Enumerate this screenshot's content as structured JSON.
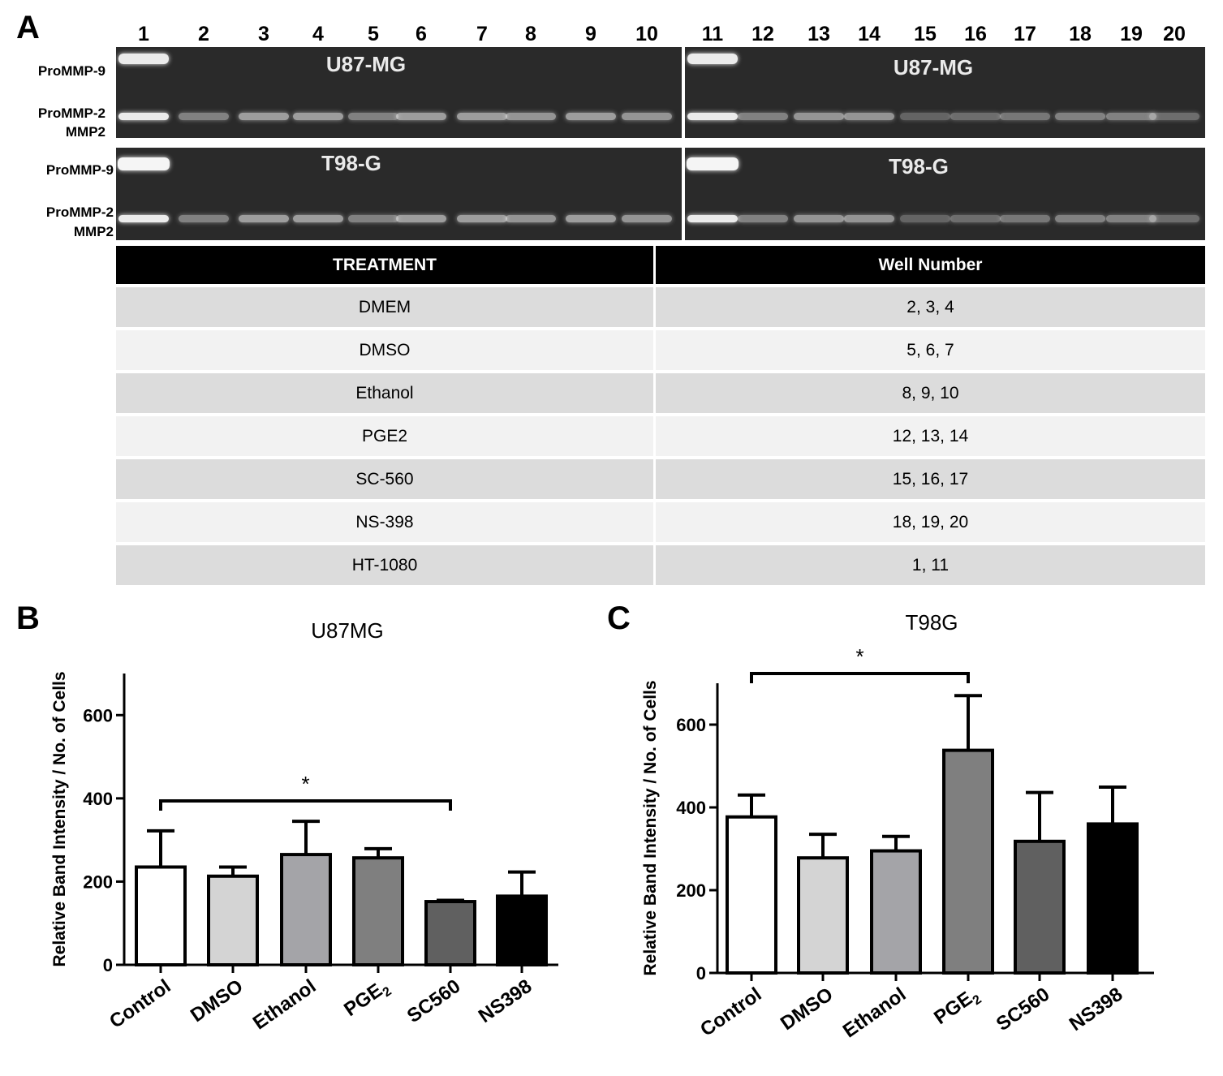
{
  "panel_a": {
    "label": "A",
    "lane_numbers": [
      "1",
      "2",
      "3",
      "4",
      "5",
      "6",
      "7",
      "8",
      "9",
      "10",
      "11",
      "12",
      "13",
      "14",
      "15",
      "16",
      "17",
      "18",
      "19",
      "20"
    ],
    "gel_top": {
      "title_left": "U87-MG",
      "title_right": "U87-MG",
      "label_promm9": "ProMMP-9",
      "label_promm2": "ProMMP-2",
      "label_mmp2": "MMP2"
    },
    "gel_bottom": {
      "title_left": "T98-G",
      "title_right": "T98-G",
      "label_promm9": "ProMMP-9",
      "label_promm2": "ProMMP-2",
      "label_mmp2": "MMP2"
    },
    "table": {
      "headers": [
        "TREATMENT",
        "Well Number"
      ],
      "rows": [
        [
          "DMEM",
          "2, 3, 4"
        ],
        [
          "DMSO",
          "5, 6, 7"
        ],
        [
          "Ethanol",
          "8, 9, 10"
        ],
        [
          "PGE2",
          "12, 13, 14"
        ],
        [
          "SC-560",
          "15, 16, 17"
        ],
        [
          "NS-398",
          "18, 19, 20"
        ],
        [
          "HT-1080",
          "1, 11"
        ]
      ]
    }
  },
  "chart_data": [
    {
      "panel": "B",
      "type": "bar",
      "title": "U87MG",
      "xlabel": "",
      "ylabel": "Relative Band Intensity / No. of Cells",
      "ylim": [
        0,
        700
      ],
      "yticks": [
        0,
        200,
        400,
        600
      ],
      "categories": [
        "Control",
        "DMSO",
        "Ethanol",
        "PGE",
        "SC560",
        "NS398"
      ],
      "subscripts": [
        "",
        "",
        "",
        "2",
        "",
        ""
      ],
      "values": [
        235,
        213,
        265,
        257,
        152,
        165
      ],
      "errors": [
        87,
        22,
        80,
        22,
        3,
        58
      ],
      "colors": [
        "#ffffff",
        "#d4d4d4",
        "#a4a4a8",
        "#7f7f7f",
        "#606060",
        "#000000"
      ],
      "significance": {
        "from": 0,
        "to": 4,
        "label": "*"
      }
    },
    {
      "panel": "C",
      "type": "bar",
      "title": "T98G",
      "xlabel": "",
      "ylabel": "Relative Band Intensity / No. of Cells",
      "ylim": [
        0,
        700
      ],
      "yticks": [
        0,
        200,
        400,
        600
      ],
      "categories": [
        "Control",
        "DMSO",
        "Ethanol",
        "PGE",
        "SC560",
        "NS398"
      ],
      "subscripts": [
        "",
        "",
        "",
        "2",
        "",
        ""
      ],
      "values": [
        377,
        278,
        295,
        538,
        318,
        360
      ],
      "errors": [
        53,
        57,
        35,
        132,
        118,
        89
      ],
      "colors": [
        "#ffffff",
        "#d4d4d4",
        "#a4a4a8",
        "#7f7f7f",
        "#606060",
        "#000000"
      ],
      "significance": {
        "from": 0,
        "to": 3,
        "label": "*"
      }
    }
  ]
}
